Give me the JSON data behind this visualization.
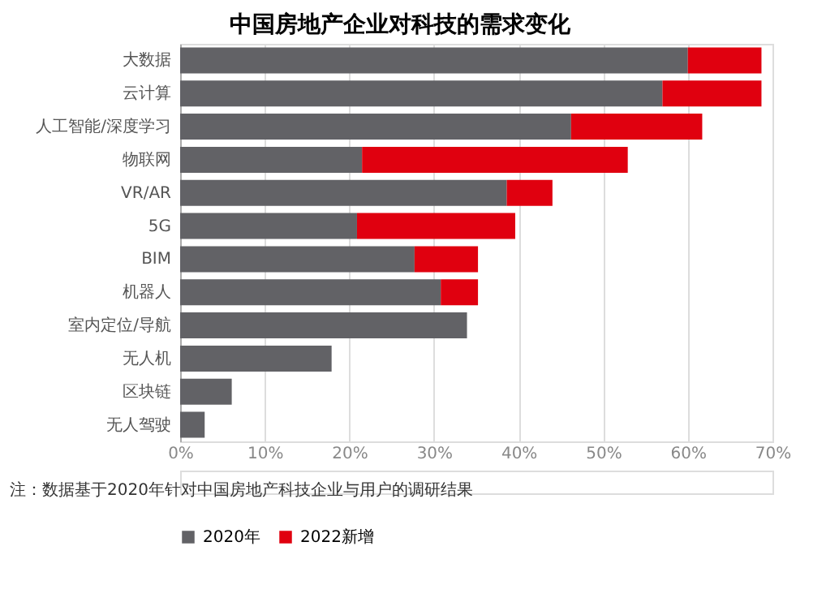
{
  "chart_data": {
    "type": "bar",
    "orientation": "horizontal",
    "stacked": true,
    "title": "中国房地产企业对科技的需求变化",
    "categories": [
      "大数据",
      "云计算",
      "人工智能/深度学习",
      "物联网",
      "VR/AR",
      "5G",
      "BIM",
      "机器人",
      "室内定位/导航",
      "无人机",
      "区块链",
      "无人驾驶"
    ],
    "series": [
      {
        "name": "2020年",
        "color": "#626266",
        "values": [
          60,
          57.0,
          46.2,
          21.5,
          38.6,
          20.9,
          27.7,
          30.8,
          33.9,
          17.9,
          6.1,
          2.9
        ]
      },
      {
        "name": "2022新增",
        "color": "#e0000f",
        "values": [
          8.7,
          11.7,
          15.5,
          31.4,
          5.4,
          18.7,
          7.5,
          4.4,
          null,
          null,
          null,
          null
        ]
      }
    ],
    "xlim": [
      0,
      70
    ],
    "xticks": [
      {
        "value": 0,
        "label": "0%"
      },
      {
        "value": 10,
        "label": "10%"
      },
      {
        "value": 20,
        "label": "20%"
      },
      {
        "value": 30,
        "label": "30%"
      },
      {
        "value": 40,
        "label": "40%"
      },
      {
        "value": 50,
        "label": "50%"
      },
      {
        "value": 60,
        "label": "60%"
      },
      {
        "value": 70,
        "label": "70%"
      }
    ],
    "grid": "x",
    "legend": "bottom",
    "annotations": [
      "注：数据基于2020年针对中国房地产科技企业与用户的调研结果"
    ]
  }
}
